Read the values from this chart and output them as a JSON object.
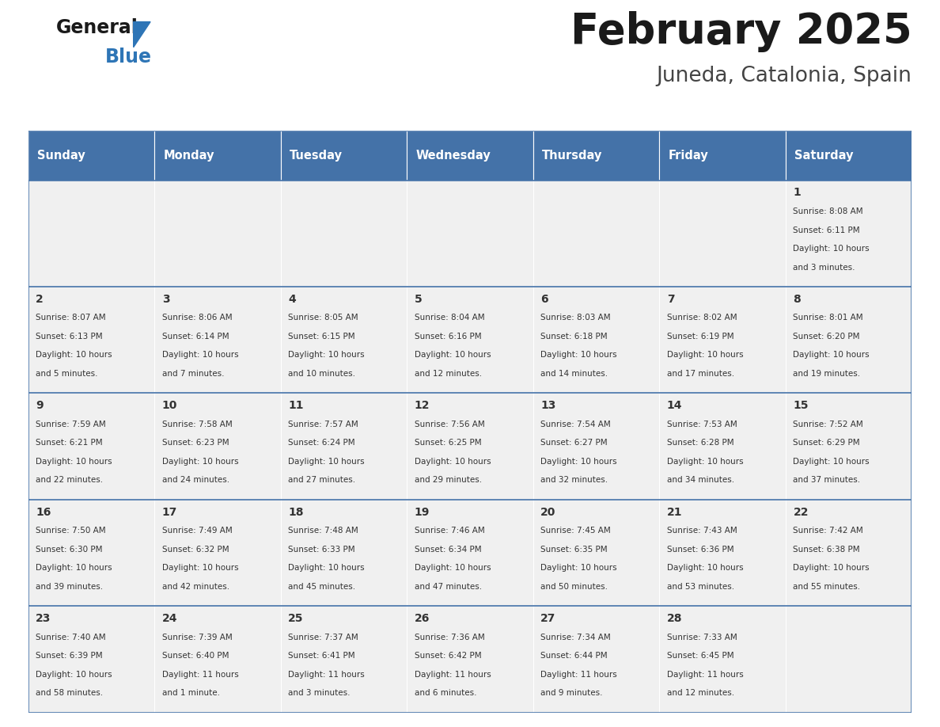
{
  "title": "February 2025",
  "subtitle": "Juneda, Catalonia, Spain",
  "header_color": "#4472a8",
  "header_text_color": "#ffffff",
  "cell_bg_color": "#f0f0f0",
  "border_color": "#4472a8",
  "text_color": "#333333",
  "day_names": [
    "Sunday",
    "Monday",
    "Tuesday",
    "Wednesday",
    "Thursday",
    "Friday",
    "Saturday"
  ],
  "days": [
    {
      "day": 1,
      "col": 6,
      "row": 0,
      "sunrise": "8:08 AM",
      "sunset": "6:11 PM",
      "daylight": "10 hours and 3 minutes."
    },
    {
      "day": 2,
      "col": 0,
      "row": 1,
      "sunrise": "8:07 AM",
      "sunset": "6:13 PM",
      "daylight": "10 hours and 5 minutes."
    },
    {
      "day": 3,
      "col": 1,
      "row": 1,
      "sunrise": "8:06 AM",
      "sunset": "6:14 PM",
      "daylight": "10 hours and 7 minutes."
    },
    {
      "day": 4,
      "col": 2,
      "row": 1,
      "sunrise": "8:05 AM",
      "sunset": "6:15 PM",
      "daylight": "10 hours and 10 minutes."
    },
    {
      "day": 5,
      "col": 3,
      "row": 1,
      "sunrise": "8:04 AM",
      "sunset": "6:16 PM",
      "daylight": "10 hours and 12 minutes."
    },
    {
      "day": 6,
      "col": 4,
      "row": 1,
      "sunrise": "8:03 AM",
      "sunset": "6:18 PM",
      "daylight": "10 hours and 14 minutes."
    },
    {
      "day": 7,
      "col": 5,
      "row": 1,
      "sunrise": "8:02 AM",
      "sunset": "6:19 PM",
      "daylight": "10 hours and 17 minutes."
    },
    {
      "day": 8,
      "col": 6,
      "row": 1,
      "sunrise": "8:01 AM",
      "sunset": "6:20 PM",
      "daylight": "10 hours and 19 minutes."
    },
    {
      "day": 9,
      "col": 0,
      "row": 2,
      "sunrise": "7:59 AM",
      "sunset": "6:21 PM",
      "daylight": "10 hours and 22 minutes."
    },
    {
      "day": 10,
      "col": 1,
      "row": 2,
      "sunrise": "7:58 AM",
      "sunset": "6:23 PM",
      "daylight": "10 hours and 24 minutes."
    },
    {
      "day": 11,
      "col": 2,
      "row": 2,
      "sunrise": "7:57 AM",
      "sunset": "6:24 PM",
      "daylight": "10 hours and 27 minutes."
    },
    {
      "day": 12,
      "col": 3,
      "row": 2,
      "sunrise": "7:56 AM",
      "sunset": "6:25 PM",
      "daylight": "10 hours and 29 minutes."
    },
    {
      "day": 13,
      "col": 4,
      "row": 2,
      "sunrise": "7:54 AM",
      "sunset": "6:27 PM",
      "daylight": "10 hours and 32 minutes."
    },
    {
      "day": 14,
      "col": 5,
      "row": 2,
      "sunrise": "7:53 AM",
      "sunset": "6:28 PM",
      "daylight": "10 hours and 34 minutes."
    },
    {
      "day": 15,
      "col": 6,
      "row": 2,
      "sunrise": "7:52 AM",
      "sunset": "6:29 PM",
      "daylight": "10 hours and 37 minutes."
    },
    {
      "day": 16,
      "col": 0,
      "row": 3,
      "sunrise": "7:50 AM",
      "sunset": "6:30 PM",
      "daylight": "10 hours and 39 minutes."
    },
    {
      "day": 17,
      "col": 1,
      "row": 3,
      "sunrise": "7:49 AM",
      "sunset": "6:32 PM",
      "daylight": "10 hours and 42 minutes."
    },
    {
      "day": 18,
      "col": 2,
      "row": 3,
      "sunrise": "7:48 AM",
      "sunset": "6:33 PM",
      "daylight": "10 hours and 45 minutes."
    },
    {
      "day": 19,
      "col": 3,
      "row": 3,
      "sunrise": "7:46 AM",
      "sunset": "6:34 PM",
      "daylight": "10 hours and 47 minutes."
    },
    {
      "day": 20,
      "col": 4,
      "row": 3,
      "sunrise": "7:45 AM",
      "sunset": "6:35 PM",
      "daylight": "10 hours and 50 minutes."
    },
    {
      "day": 21,
      "col": 5,
      "row": 3,
      "sunrise": "7:43 AM",
      "sunset": "6:36 PM",
      "daylight": "10 hours and 53 minutes."
    },
    {
      "day": 22,
      "col": 6,
      "row": 3,
      "sunrise": "7:42 AM",
      "sunset": "6:38 PM",
      "daylight": "10 hours and 55 minutes."
    },
    {
      "day": 23,
      "col": 0,
      "row": 4,
      "sunrise": "7:40 AM",
      "sunset": "6:39 PM",
      "daylight": "10 hours and 58 minutes."
    },
    {
      "day": 24,
      "col": 1,
      "row": 4,
      "sunrise": "7:39 AM",
      "sunset": "6:40 PM",
      "daylight": "11 hours and 1 minute."
    },
    {
      "day": 25,
      "col": 2,
      "row": 4,
      "sunrise": "7:37 AM",
      "sunset": "6:41 PM",
      "daylight": "11 hours and 3 minutes."
    },
    {
      "day": 26,
      "col": 3,
      "row": 4,
      "sunrise": "7:36 AM",
      "sunset": "6:42 PM",
      "daylight": "11 hours and 6 minutes."
    },
    {
      "day": 27,
      "col": 4,
      "row": 4,
      "sunrise": "7:34 AM",
      "sunset": "6:44 PM",
      "daylight": "11 hours and 9 minutes."
    },
    {
      "day": 28,
      "col": 5,
      "row": 4,
      "sunrise": "7:33 AM",
      "sunset": "6:45 PM",
      "daylight": "11 hours and 12 minutes."
    }
  ]
}
